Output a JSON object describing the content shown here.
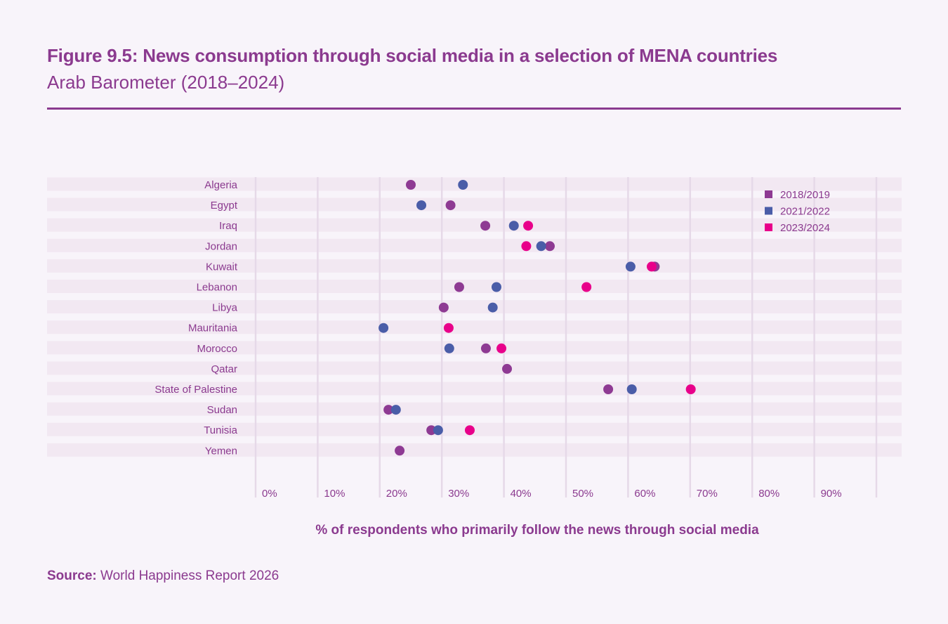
{
  "header": {
    "title": "Figure 9.5: News consumption through social media in a selection of MENA countries",
    "subtitle": "Arab Barometer (2018–2024)"
  },
  "footer": {
    "source_label": "Source",
    "source_sep": ":",
    "source_text": " World Happiness Report 2026"
  },
  "chart_data": {
    "type": "scatter",
    "subtype": "dot-plot",
    "title": "Figure 9.5: News consumption through social media in a selection of MENA countries",
    "subtitle": "Arab Barometer (2018–2024)",
    "xlabel": "% of respondents who primarily follow the news through social media",
    "ylabel": "",
    "xlim": [
      0,
      100
    ],
    "x_ticks": [
      0,
      10,
      20,
      30,
      40,
      50,
      60,
      70,
      80,
      90
    ],
    "x_tick_labels": [
      "0%",
      "10%",
      "20%",
      "30%",
      "40%",
      "50%",
      "60%",
      "70%",
      "80%",
      "90%"
    ],
    "grid": true,
    "legend_position": "top-right",
    "categories": [
      "Algeria",
      "Egypt",
      "Iraq",
      "Jordan",
      "Kuwait",
      "Lebanon",
      "Libya",
      "Mauritania",
      "Morocco",
      "Qatar",
      "State of Palestine",
      "Sudan",
      "Tunisia",
      "Yemen"
    ],
    "series": [
      {
        "name": "2018/2019",
        "color": "#8e3a93",
        "values": [
          25.0,
          31.4,
          37.0,
          47.4,
          64.3,
          32.8,
          30.3,
          null,
          37.1,
          40.5,
          56.8,
          21.4,
          28.3,
          23.2
        ]
      },
      {
        "name": "2021/2022",
        "color": "#4a5da8",
        "values": [
          33.4,
          26.7,
          41.6,
          46.0,
          60.4,
          38.8,
          38.2,
          20.6,
          31.2,
          null,
          60.6,
          22.6,
          29.4,
          null
        ]
      },
      {
        "name": "2023/2024",
        "color": "#e8008a",
        "values": [
          null,
          null,
          43.9,
          43.6,
          63.8,
          53.3,
          null,
          31.1,
          39.6,
          null,
          70.1,
          null,
          34.5,
          null
        ]
      }
    ]
  },
  "colors": {
    "text": "#8b3a8f",
    "background": "#f8f4fa",
    "band": "#f2e8f2",
    "gridline": "#e6d9e8"
  }
}
